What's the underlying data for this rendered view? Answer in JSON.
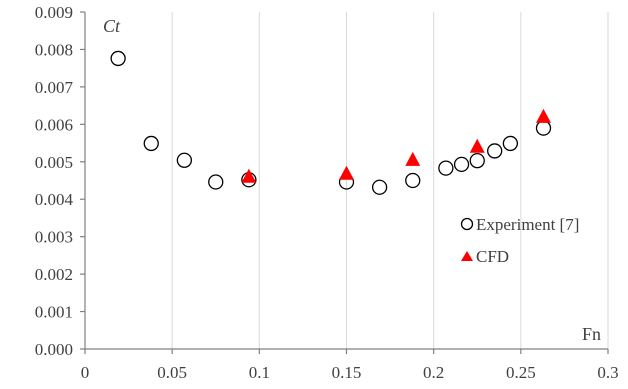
{
  "chart_data": {
    "type": "scatter",
    "xlabel": "Fn",
    "ylabel": "Ct",
    "xlim": [
      0,
      0.3
    ],
    "ylim": [
      0,
      0.009
    ],
    "x_ticks": [
      0,
      0.05,
      0.1,
      0.15,
      0.2,
      0.25,
      0.3
    ],
    "x_tick_labels": [
      "0",
      "0.05",
      "0.1",
      "0.15",
      "0.2",
      "0.25",
      "0.3"
    ],
    "y_ticks": [
      0,
      0.001,
      0.002,
      0.003,
      0.004,
      0.005,
      0.006,
      0.007,
      0.008,
      0.009
    ],
    "y_tick_labels": [
      "0.000",
      "0.001",
      "0.002",
      "0.003",
      "0.004",
      "0.005",
      "0.006",
      "0.007",
      "0.008",
      "0.009"
    ],
    "grid": "vertical",
    "legend_position": "bottom-right",
    "series": [
      {
        "name": "Experiment [7]",
        "marker": "open-circle",
        "color": "#000000",
        "points": [
          {
            "x": 0.019,
            "y": 0.00776
          },
          {
            "x": 0.038,
            "y": 0.00549
          },
          {
            "x": 0.057,
            "y": 0.00504
          },
          {
            "x": 0.075,
            "y": 0.00446
          },
          {
            "x": 0.094,
            "y": 0.00452
          },
          {
            "x": 0.15,
            "y": 0.00446
          },
          {
            "x": 0.169,
            "y": 0.00432
          },
          {
            "x": 0.188,
            "y": 0.0045
          },
          {
            "x": 0.207,
            "y": 0.00483
          },
          {
            "x": 0.216,
            "y": 0.00493
          },
          {
            "x": 0.225,
            "y": 0.00503
          },
          {
            "x": 0.235,
            "y": 0.00529
          },
          {
            "x": 0.244,
            "y": 0.00549
          },
          {
            "x": 0.263,
            "y": 0.0059
          }
        ]
      },
      {
        "name": "CFD",
        "marker": "filled-triangle",
        "color": "#ff0000",
        "points": [
          {
            "x": 0.094,
            "y": 0.0046
          },
          {
            "x": 0.15,
            "y": 0.00468
          },
          {
            "x": 0.188,
            "y": 0.00505
          },
          {
            "x": 0.225,
            "y": 0.0054
          },
          {
            "x": 0.263,
            "y": 0.0062
          }
        ]
      }
    ]
  }
}
